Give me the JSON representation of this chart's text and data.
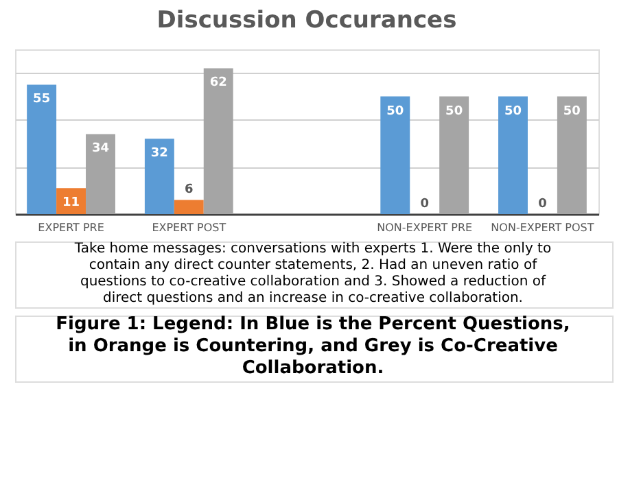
{
  "chart_data": {
    "type": "bar",
    "title": "Discussion Occurances",
    "categories": [
      "EXPERT PRE",
      "EXPERT POST",
      null,
      "NON-EXPERT PRE",
      "NON-EXPERT POST"
    ],
    "series": [
      {
        "color": "#5b9bd5",
        "values": [
          55,
          32,
          null,
          50,
          50
        ]
      },
      {
        "color": "#ed7d31",
        "values": [
          11,
          6,
          null,
          0,
          0
        ]
      },
      {
        "color": "#a5a5a5",
        "values": [
          34,
          62,
          null,
          50,
          50
        ]
      }
    ],
    "ylim": [
      0,
      70
    ],
    "tick_labels": "x",
    "grid": "y",
    "data_labels": true,
    "annotations": [
      "Take home messages: conversations with experts 1. Were the only to contain any direct counter statements, 2. Had an uneven ratio of questions to co-creative collaboration and 3. Showed a reduction of direct questions and an increase in co-creative collaboration.",
      "Figure 1: Legend: In Blue is the Percent Questions, in Orange is Countering, and Grey is Co-Creative Collaboration."
    ]
  }
}
